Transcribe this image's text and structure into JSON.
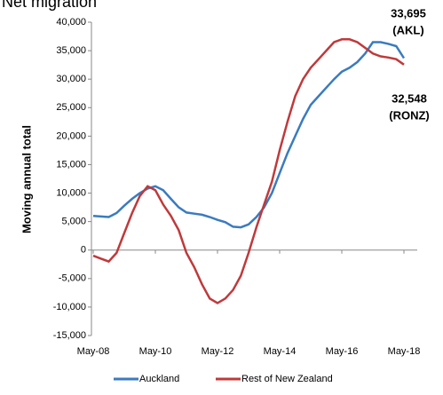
{
  "chart_data": {
    "type": "line",
    "title": "Net migration",
    "y_label": "Moving annual total",
    "categories": [
      "May-08",
      "Aug-08",
      "Nov-08",
      "Feb-09",
      "May-09",
      "Aug-09",
      "Nov-09",
      "Feb-10",
      "May-10",
      "Aug-10",
      "Nov-10",
      "Feb-11",
      "May-11",
      "Aug-11",
      "Nov-11",
      "Feb-12",
      "May-12",
      "Aug-12",
      "Nov-12",
      "Feb-13",
      "May-13",
      "Aug-13",
      "Nov-13",
      "Feb-14",
      "May-14",
      "Aug-14",
      "Nov-14",
      "Feb-15",
      "May-15",
      "Aug-15",
      "Nov-15",
      "Feb-16",
      "May-16",
      "Aug-16",
      "Nov-16",
      "Feb-17",
      "May-17",
      "Aug-17",
      "Nov-17",
      "Feb-18",
      "May-18"
    ],
    "xticks": [
      "May-08",
      "May-10",
      "May-12",
      "May-14",
      "May-16",
      "May-18"
    ],
    "series": [
      {
        "name": "Auckland",
        "color": "#3a7bbf",
        "values": [
          6000,
          5900,
          5800,
          6500,
          7800,
          9000,
          10000,
          10800,
          11200,
          10500,
          9000,
          7500,
          6600,
          6400,
          6200,
          5800,
          5300,
          4900,
          4100,
          4000,
          4500,
          5800,
          7500,
          10000,
          13500,
          17000,
          20000,
          23000,
          25500,
          27000,
          28500,
          30000,
          31300,
          32000,
          33000,
          34500,
          36500,
          36500,
          36200,
          35800,
          33695
        ]
      },
      {
        "name": "Rest of New Zealand",
        "color": "#c0393b",
        "values": [
          -1000,
          -1500,
          -2000,
          -500,
          3000,
          6500,
          9500,
          11200,
          10500,
          8000,
          6000,
          3500,
          -500,
          -3000,
          -6000,
          -8500,
          -9300,
          -8500,
          -7000,
          -4500,
          -500,
          4000,
          8000,
          12000,
          17500,
          22500,
          27000,
          30000,
          32000,
          33500,
          35000,
          36500,
          37000,
          37000,
          36500,
          35500,
          34500,
          34000,
          33800,
          33500,
          32548
        ]
      }
    ],
    "ylim": [
      -15000,
      40000
    ],
    "yticks": [
      {
        "value": -15000,
        "label": "-15,000"
      },
      {
        "value": -10000,
        "label": "-10,000"
      },
      {
        "value": -5000,
        "label": "-5,000"
      },
      0,
      {
        "value": 5000,
        "label": "5,000"
      },
      {
        "value": 10000,
        "label": "10,000"
      },
      {
        "value": 15000,
        "label": "15,000"
      },
      {
        "value": 20000,
        "label": "20,000"
      },
      {
        "value": 25000,
        "label": "25,000"
      },
      {
        "value": 30000,
        "label": "30,000"
      },
      {
        "value": 35000,
        "label": "35,000"
      },
      {
        "value": 40000,
        "label": "40,000"
      }
    ],
    "annotations": [
      {
        "text": "33,695",
        "color": "#3a7bbf"
      },
      {
        "text": "(AKL)",
        "color": "#3a7bbf"
      },
      {
        "text": "32,548",
        "color": "#c0393b"
      },
      {
        "text": "(RONZ)",
        "color": "#c0393b"
      }
    ]
  }
}
